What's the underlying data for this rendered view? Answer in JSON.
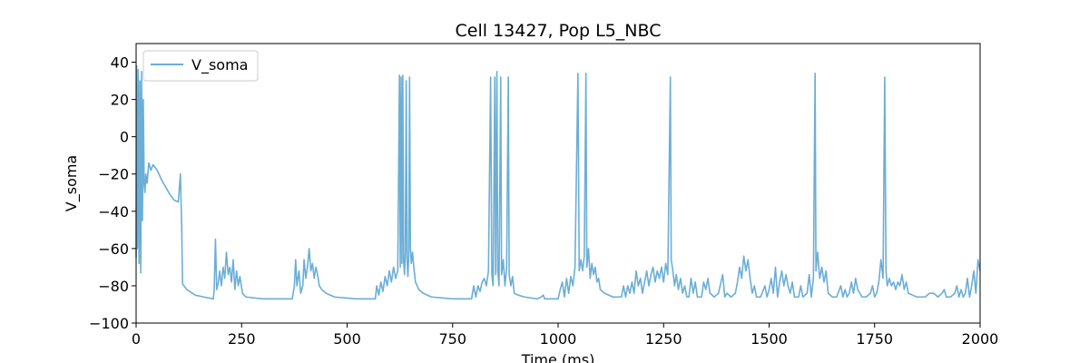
{
  "chart_data": {
    "type": "line",
    "title": "Cell 13427, Pop L5_NBC",
    "xlabel": "Time (ms)",
    "ylabel": "V_soma",
    "xlim": [
      0,
      2000
    ],
    "ylim": [
      -100,
      50
    ],
    "xticks": [
      0,
      250,
      500,
      750,
      1000,
      1250,
      1500,
      1750,
      2000
    ],
    "yticks": [
      -100,
      -80,
      -60,
      -40,
      -20,
      0,
      20,
      40
    ],
    "legend_location": "top-left",
    "grid": false,
    "series": [
      {
        "name": "V_soma",
        "color": "#6baed6",
        "points": [
          [
            0,
            -65
          ],
          [
            1,
            38
          ],
          [
            3,
            -60
          ],
          [
            5,
            36
          ],
          [
            7,
            -68
          ],
          [
            9,
            30
          ],
          [
            11,
            -73
          ],
          [
            13,
            35
          ],
          [
            15,
            -45
          ],
          [
            17,
            20
          ],
          [
            19,
            -25
          ],
          [
            21,
            -30
          ],
          [
            23,
            -20
          ],
          [
            26,
            -25
          ],
          [
            30,
            -14
          ],
          [
            35,
            -18
          ],
          [
            40,
            -15
          ],
          [
            50,
            -18
          ],
          [
            60,
            -23
          ],
          [
            70,
            -27
          ],
          [
            80,
            -31
          ],
          [
            90,
            -34
          ],
          [
            100,
            -35
          ],
          [
            103,
            -26
          ],
          [
            105,
            -20
          ],
          [
            108,
            -48
          ],
          [
            110,
            -79
          ],
          [
            120,
            -82
          ],
          [
            140,
            -85
          ],
          [
            160,
            -86
          ],
          [
            183,
            -87
          ],
          [
            185,
            -82
          ],
          [
            188,
            -55
          ],
          [
            191,
            -82
          ],
          [
            195,
            -78
          ],
          [
            198,
            -72
          ],
          [
            202,
            -80
          ],
          [
            206,
            -70
          ],
          [
            210,
            -76
          ],
          [
            214,
            -62
          ],
          [
            218,
            -74
          ],
          [
            222,
            -70
          ],
          [
            226,
            -78
          ],
          [
            230,
            -66
          ],
          [
            234,
            -82
          ],
          [
            238,
            -72
          ],
          [
            242,
            -80
          ],
          [
            246,
            -75
          ],
          [
            252,
            -84
          ],
          [
            260,
            -86
          ],
          [
            300,
            -87
          ],
          [
            350,
            -87
          ],
          [
            370,
            -87
          ],
          [
            375,
            -80
          ],
          [
            378,
            -66
          ],
          [
            381,
            -80
          ],
          [
            386,
            -72
          ],
          [
            390,
            -84
          ],
          [
            395,
            -80
          ],
          [
            398,
            -66
          ],
          [
            402,
            -76
          ],
          [
            406,
            -70
          ],
          [
            410,
            -60
          ],
          [
            414,
            -72
          ],
          [
            418,
            -68
          ],
          [
            422,
            -76
          ],
          [
            426,
            -70
          ],
          [
            430,
            -74
          ],
          [
            434,
            -80
          ],
          [
            440,
            -82
          ],
          [
            450,
            -84
          ],
          [
            470,
            -86
          ],
          [
            520,
            -87
          ],
          [
            567,
            -87
          ],
          [
            570,
            -80
          ],
          [
            575,
            -85
          ],
          [
            580,
            -78
          ],
          [
            585,
            -83
          ],
          [
            590,
            -75
          ],
          [
            595,
            -80
          ],
          [
            600,
            -72
          ],
          [
            605,
            -78
          ],
          [
            610,
            -70
          ],
          [
            615,
            -76
          ],
          [
            620,
            -72
          ],
          [
            624,
            33
          ],
          [
            626,
            -70
          ],
          [
            628,
            32
          ],
          [
            630,
            -68
          ],
          [
            632,
            33
          ],
          [
            634,
            -67
          ],
          [
            636,
            -74
          ],
          [
            638,
            -62
          ],
          [
            640,
            30
          ],
          [
            642,
            -66
          ],
          [
            644,
            -75
          ],
          [
            646,
            -64
          ],
          [
            648,
            32
          ],
          [
            650,
            -60
          ],
          [
            652,
            -68
          ],
          [
            655,
            -62
          ],
          [
            658,
            -70
          ],
          [
            662,
            -78
          ],
          [
            670,
            -82
          ],
          [
            680,
            -84
          ],
          [
            700,
            -86
          ],
          [
            750,
            -87
          ],
          [
            795,
            -87
          ],
          [
            800,
            -80
          ],
          [
            805,
            -86
          ],
          [
            810,
            -80
          ],
          [
            815,
            -83
          ],
          [
            820,
            -78
          ],
          [
            825,
            -76
          ],
          [
            830,
            -80
          ],
          [
            835,
            -72
          ],
          [
            840,
            32
          ],
          [
            843,
            -74
          ],
          [
            846,
            -80
          ],
          [
            850,
            32
          ],
          [
            852,
            -74
          ],
          [
            855,
            35
          ],
          [
            857,
            -72
          ],
          [
            860,
            -80
          ],
          [
            864,
            32
          ],
          [
            866,
            -74
          ],
          [
            870,
            -66
          ],
          [
            874,
            -80
          ],
          [
            878,
            -70
          ],
          [
            882,
            32
          ],
          [
            884,
            -74
          ],
          [
            888,
            -80
          ],
          [
            892,
            -75
          ],
          [
            896,
            -84
          ],
          [
            905,
            -85
          ],
          [
            920,
            -86
          ],
          [
            950,
            -87
          ],
          [
            960,
            -86
          ],
          [
            965,
            -85
          ],
          [
            968,
            -87
          ],
          [
            1000,
            -87
          ],
          [
            1005,
            -82
          ],
          [
            1010,
            -78
          ],
          [
            1015,
            -86
          ],
          [
            1020,
            -76
          ],
          [
            1025,
            -84
          ],
          [
            1030,
            -75
          ],
          [
            1035,
            -80
          ],
          [
            1040,
            -70
          ],
          [
            1047,
            34
          ],
          [
            1050,
            -72
          ],
          [
            1054,
            -66
          ],
          [
            1058,
            -72
          ],
          [
            1062,
            -64
          ],
          [
            1066,
            34
          ],
          [
            1068,
            -70
          ],
          [
            1072,
            -60
          ],
          [
            1076,
            -76
          ],
          [
            1080,
            -68
          ],
          [
            1084,
            -74
          ],
          [
            1088,
            -70
          ],
          [
            1092,
            -78
          ],
          [
            1096,
            -76
          ],
          [
            1100,
            -82
          ],
          [
            1110,
            -84
          ],
          [
            1130,
            -86
          ],
          [
            1150,
            -86
          ],
          [
            1155,
            -80
          ],
          [
            1160,
            -86
          ],
          [
            1165,
            -80
          ],
          [
            1170,
            -84
          ],
          [
            1175,
            -78
          ],
          [
            1180,
            -84
          ],
          [
            1185,
            -72
          ],
          [
            1190,
            -80
          ],
          [
            1195,
            -76
          ],
          [
            1200,
            -84
          ],
          [
            1205,
            -78
          ],
          [
            1210,
            -72
          ],
          [
            1215,
            -80
          ],
          [
            1220,
            -74
          ],
          [
            1225,
            -70
          ],
          [
            1230,
            -78
          ],
          [
            1235,
            -72
          ],
          [
            1240,
            -76
          ],
          [
            1245,
            -70
          ],
          [
            1250,
            -78
          ],
          [
            1255,
            -68
          ],
          [
            1260,
            -74
          ],
          [
            1266,
            32
          ],
          [
            1268,
            -66
          ],
          [
            1272,
            -72
          ],
          [
            1276,
            -80
          ],
          [
            1280,
            -74
          ],
          [
            1285,
            -82
          ],
          [
            1290,
            -76
          ],
          [
            1295,
            -84
          ],
          [
            1300,
            -80
          ],
          [
            1305,
            -86
          ],
          [
            1310,
            -86
          ],
          [
            1315,
            -76
          ],
          [
            1320,
            -84
          ],
          [
            1325,
            -78
          ],
          [
            1330,
            -86
          ],
          [
            1340,
            -86
          ],
          [
            1345,
            -78
          ],
          [
            1350,
            -82
          ],
          [
            1355,
            -76
          ],
          [
            1360,
            -84
          ],
          [
            1370,
            -86
          ],
          [
            1380,
            -84
          ],
          [
            1390,
            -74
          ],
          [
            1395,
            -86
          ],
          [
            1400,
            -84
          ],
          [
            1410,
            -86
          ],
          [
            1420,
            -84
          ],
          [
            1425,
            -78
          ],
          [
            1430,
            -70
          ],
          [
            1435,
            -76
          ],
          [
            1440,
            -64
          ],
          [
            1445,
            -72
          ],
          [
            1450,
            -66
          ],
          [
            1455,
            -76
          ],
          [
            1460,
            -84
          ],
          [
            1465,
            -80
          ],
          [
            1470,
            -86
          ],
          [
            1480,
            -86
          ],
          [
            1490,
            -80
          ],
          [
            1495,
            -86
          ],
          [
            1500,
            -82
          ],
          [
            1505,
            -76
          ],
          [
            1510,
            -84
          ],
          [
            1515,
            -70
          ],
          [
            1520,
            -86
          ],
          [
            1525,
            -78
          ],
          [
            1530,
            -72
          ],
          [
            1535,
            -80
          ],
          [
            1540,
            -74
          ],
          [
            1545,
            -80
          ],
          [
            1550,
            -84
          ],
          [
            1555,
            -78
          ],
          [
            1560,
            -86
          ],
          [
            1570,
            -86
          ],
          [
            1575,
            -80
          ],
          [
            1580,
            -86
          ],
          [
            1590,
            -84
          ],
          [
            1595,
            -74
          ],
          [
            1600,
            -86
          ],
          [
            1605,
            -76
          ],
          [
            1609,
            34
          ],
          [
            1611,
            -72
          ],
          [
            1615,
            -62
          ],
          [
            1620,
            -76
          ],
          [
            1625,
            -70
          ],
          [
            1630,
            -78
          ],
          [
            1635,
            -72
          ],
          [
            1640,
            -84
          ],
          [
            1650,
            -86
          ],
          [
            1660,
            -86
          ],
          [
            1670,
            -80
          ],
          [
            1675,
            -86
          ],
          [
            1680,
            -82
          ],
          [
            1685,
            -86
          ],
          [
            1690,
            -84
          ],
          [
            1695,
            -78
          ],
          [
            1700,
            -84
          ],
          [
            1705,
            -76
          ],
          [
            1710,
            -82
          ],
          [
            1715,
            -84
          ],
          [
            1720,
            -86
          ],
          [
            1730,
            -86
          ],
          [
            1740,
            -84
          ],
          [
            1745,
            -80
          ],
          [
            1750,
            -86
          ],
          [
            1755,
            -84
          ],
          [
            1760,
            -78
          ],
          [
            1765,
            -66
          ],
          [
            1770,
            -76
          ],
          [
            1774,
            32
          ],
          [
            1777,
            -72
          ],
          [
            1780,
            -80
          ],
          [
            1785,
            -76
          ],
          [
            1790,
            -80
          ],
          [
            1795,
            -78
          ],
          [
            1800,
            -82
          ],
          [
            1805,
            -78
          ],
          [
            1810,
            -80
          ],
          [
            1815,
            -74
          ],
          [
            1820,
            -82
          ],
          [
            1825,
            -78
          ],
          [
            1830,
            -84
          ],
          [
            1840,
            -85
          ],
          [
            1850,
            -86
          ],
          [
            1860,
            -86
          ],
          [
            1870,
            -86
          ],
          [
            1880,
            -84
          ],
          [
            1890,
            -84
          ],
          [
            1900,
            -86
          ],
          [
            1910,
            -84
          ],
          [
            1915,
            -82
          ],
          [
            1920,
            -86
          ],
          [
            1930,
            -86
          ],
          [
            1940,
            -84
          ],
          [
            1945,
            -80
          ],
          [
            1950,
            -86
          ],
          [
            1955,
            -82
          ],
          [
            1960,
            -86
          ],
          [
            1965,
            -84
          ],
          [
            1970,
            -76
          ],
          [
            1975,
            -86
          ],
          [
            1980,
            -80
          ],
          [
            1985,
            -72
          ],
          [
            1990,
            -84
          ],
          [
            1995,
            -66
          ],
          [
            2000,
            -72
          ]
        ]
      }
    ]
  }
}
